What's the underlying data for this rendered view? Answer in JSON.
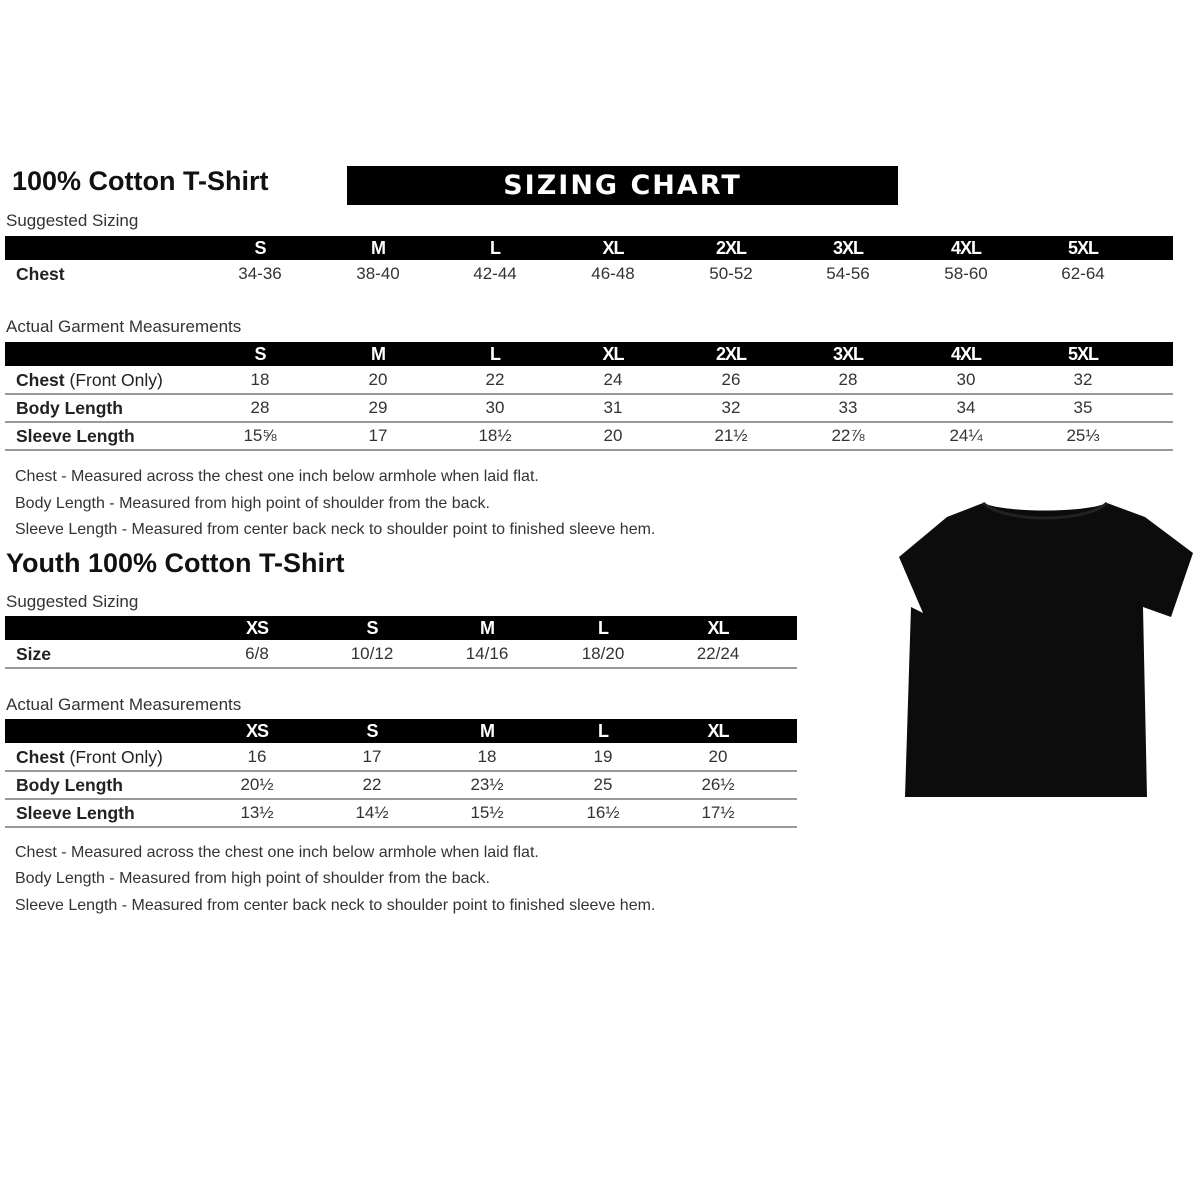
{
  "adult": {
    "title": "100% Cotton T-Shirt",
    "banner": "SIZING CHART",
    "suggested": {
      "label": "Suggested Sizing",
      "sizes": [
        "S",
        "M",
        "L",
        "XL",
        "2XL",
        "3XL",
        "4XL",
        "5XL"
      ],
      "rows": [
        {
          "label": "Chest",
          "label_extra": "",
          "values": [
            "34-36",
            "38-40",
            "42-44",
            "46-48",
            "50-52",
            "54-56",
            "58-60",
            "62-64"
          ]
        }
      ]
    },
    "actual": {
      "label": "Actual Garment Measurements",
      "sizes": [
        "S",
        "M",
        "L",
        "XL",
        "2XL",
        "3XL",
        "4XL",
        "5XL"
      ],
      "rows": [
        {
          "label": "Chest",
          "label_extra": " (Front Only)",
          "values": [
            "18",
            "20",
            "22",
            "24",
            "26",
            "28",
            "30",
            "32"
          ]
        },
        {
          "label": "Body Length",
          "label_extra": "",
          "values": [
            "28",
            "29",
            "30",
            "31",
            "32",
            "33",
            "34",
            "35"
          ]
        },
        {
          "label": "Sleeve Length",
          "label_extra": "",
          "values": [
            "15⅝",
            "17",
            "18½",
            "20",
            "21½",
            "22⅞",
            "24¼",
            "25⅓"
          ]
        }
      ]
    },
    "notes": [
      "Chest - Measured across the chest one inch below armhole when laid flat.",
      "Body Length - Measured from high point of shoulder from the back.",
      "Sleeve Length - Measured from center back neck to shoulder point to finished sleeve hem."
    ]
  },
  "youth": {
    "title": "Youth 100% Cotton T-Shirt",
    "suggested": {
      "label": "Suggested Sizing",
      "sizes": [
        "XS",
        "S",
        "M",
        "L",
        "XL"
      ],
      "rows": [
        {
          "label": "Size",
          "label_extra": "",
          "values": [
            "6/8",
            "10/12",
            "14/16",
            "18/20",
            "22/24"
          ]
        }
      ]
    },
    "actual": {
      "label": "Actual Garment Measurements",
      "sizes": [
        "XS",
        "S",
        "M",
        "L",
        "XL"
      ],
      "rows": [
        {
          "label": "Chest",
          "label_extra": " (Front Only)",
          "values": [
            "16",
            "17",
            "18",
            "19",
            "20"
          ]
        },
        {
          "label": "Body Length",
          "label_extra": "",
          "values": [
            "20½",
            "22",
            "23½",
            "25",
            "26½"
          ]
        },
        {
          "label": "Sleeve Length",
          "label_extra": "",
          "values": [
            "13½",
            "14½",
            "15½",
            "16½",
            "17½"
          ]
        }
      ]
    },
    "notes": [
      "Chest - Measured across the chest one inch below armhole when laid flat.",
      "Body Length - Measured from high point of shoulder from the back.",
      "Sleeve Length - Measured from center back neck to shoulder point to finished sleeve hem."
    ]
  },
  "image": {
    "icon": "t-shirt-icon",
    "color": "#0c0c0c"
  }
}
